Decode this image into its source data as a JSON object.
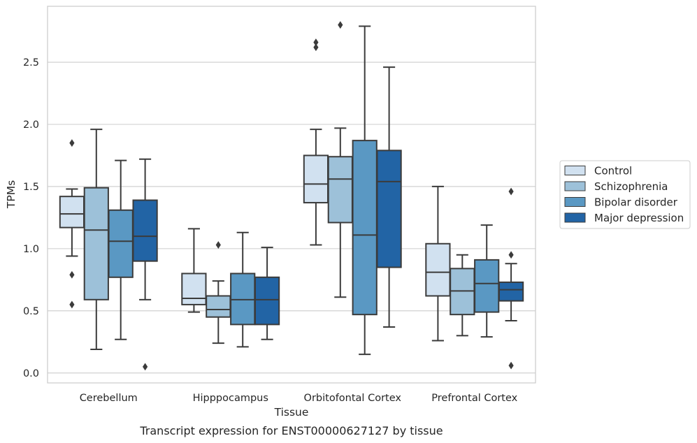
{
  "caption": "Transcript expression for ENST00000627127 by tissue",
  "chart_data": {
    "type": "box",
    "xlabel": "Tissue",
    "ylabel": "TPMs",
    "ylim": [
      -0.08,
      2.95
    ],
    "yticks": [
      0.0,
      0.5,
      1.0,
      1.5,
      2.0,
      2.5
    ],
    "ytick_labels": [
      "0.0",
      "0.5",
      "1.0",
      "1.5",
      "2.0",
      "2.5"
    ],
    "grid": "horizontal",
    "legend_position": "right",
    "categories": [
      "Cerebellum",
      "Hipppocampus",
      "Orbitofontal Cortex",
      "Prefrontal Cortex"
    ],
    "series": [
      {
        "name": "Control",
        "color": "#d1e1f0",
        "boxes": [
          {
            "whislo": 0.94,
            "q1": 1.17,
            "med": 1.28,
            "q3": 1.42,
            "whishi": 1.48,
            "fliers": [
              1.85,
              0.79,
              0.55
            ]
          },
          {
            "whislo": 0.49,
            "q1": 0.55,
            "med": 0.6,
            "q3": 0.8,
            "whishi": 1.16,
            "fliers": []
          },
          {
            "whislo": 1.03,
            "q1": 1.37,
            "med": 1.52,
            "q3": 1.75,
            "whishi": 1.96,
            "fliers": [
              2.66,
              2.62
            ]
          },
          {
            "whislo": 0.26,
            "q1": 0.62,
            "med": 0.81,
            "q3": 1.04,
            "whishi": 1.5,
            "fliers": []
          }
        ]
      },
      {
        "name": "Schizophrenia",
        "color": "#9dc1d9",
        "boxes": [
          {
            "whislo": 0.19,
            "q1": 0.59,
            "med": 1.15,
            "q3": 1.49,
            "whishi": 1.96,
            "fliers": []
          },
          {
            "whislo": 0.24,
            "q1": 0.45,
            "med": 0.51,
            "q3": 0.62,
            "whishi": 0.74,
            "fliers": [
              1.03
            ]
          },
          {
            "whislo": 0.61,
            "q1": 1.21,
            "med": 1.56,
            "q3": 1.74,
            "whishi": 1.97,
            "fliers": [
              2.8
            ]
          },
          {
            "whislo": 0.3,
            "q1": 0.47,
            "med": 0.66,
            "q3": 0.84,
            "whishi": 0.95,
            "fliers": []
          }
        ]
      },
      {
        "name": "Bipolar disorder",
        "color": "#5a98c3",
        "boxes": [
          {
            "whislo": 0.27,
            "q1": 0.77,
            "med": 1.06,
            "q3": 1.31,
            "whishi": 1.71,
            "fliers": []
          },
          {
            "whislo": 0.21,
            "q1": 0.39,
            "med": 0.59,
            "q3": 0.8,
            "whishi": 1.13,
            "fliers": []
          },
          {
            "whislo": 0.15,
            "q1": 0.47,
            "med": 1.11,
            "q3": 1.87,
            "whishi": 2.79,
            "fliers": []
          },
          {
            "whislo": 0.29,
            "q1": 0.49,
            "med": 0.72,
            "q3": 0.91,
            "whishi": 1.19,
            "fliers": []
          }
        ]
      },
      {
        "name": "Major depression",
        "color": "#2264a5",
        "boxes": [
          {
            "whislo": 0.59,
            "q1": 0.9,
            "med": 1.1,
            "q3": 1.39,
            "whishi": 1.72,
            "fliers": [
              0.05
            ]
          },
          {
            "whislo": 0.27,
            "q1": 0.39,
            "med": 0.59,
            "q3": 0.77,
            "whishi": 1.01,
            "fliers": []
          },
          {
            "whislo": 0.37,
            "q1": 0.85,
            "med": 1.54,
            "q3": 1.79,
            "whishi": 2.46,
            "fliers": []
          },
          {
            "whislo": 0.42,
            "q1": 0.58,
            "med": 0.67,
            "q3": 0.73,
            "whishi": 0.88,
            "fliers": [
              1.46,
              0.95,
              0.06
            ]
          }
        ]
      }
    ]
  }
}
